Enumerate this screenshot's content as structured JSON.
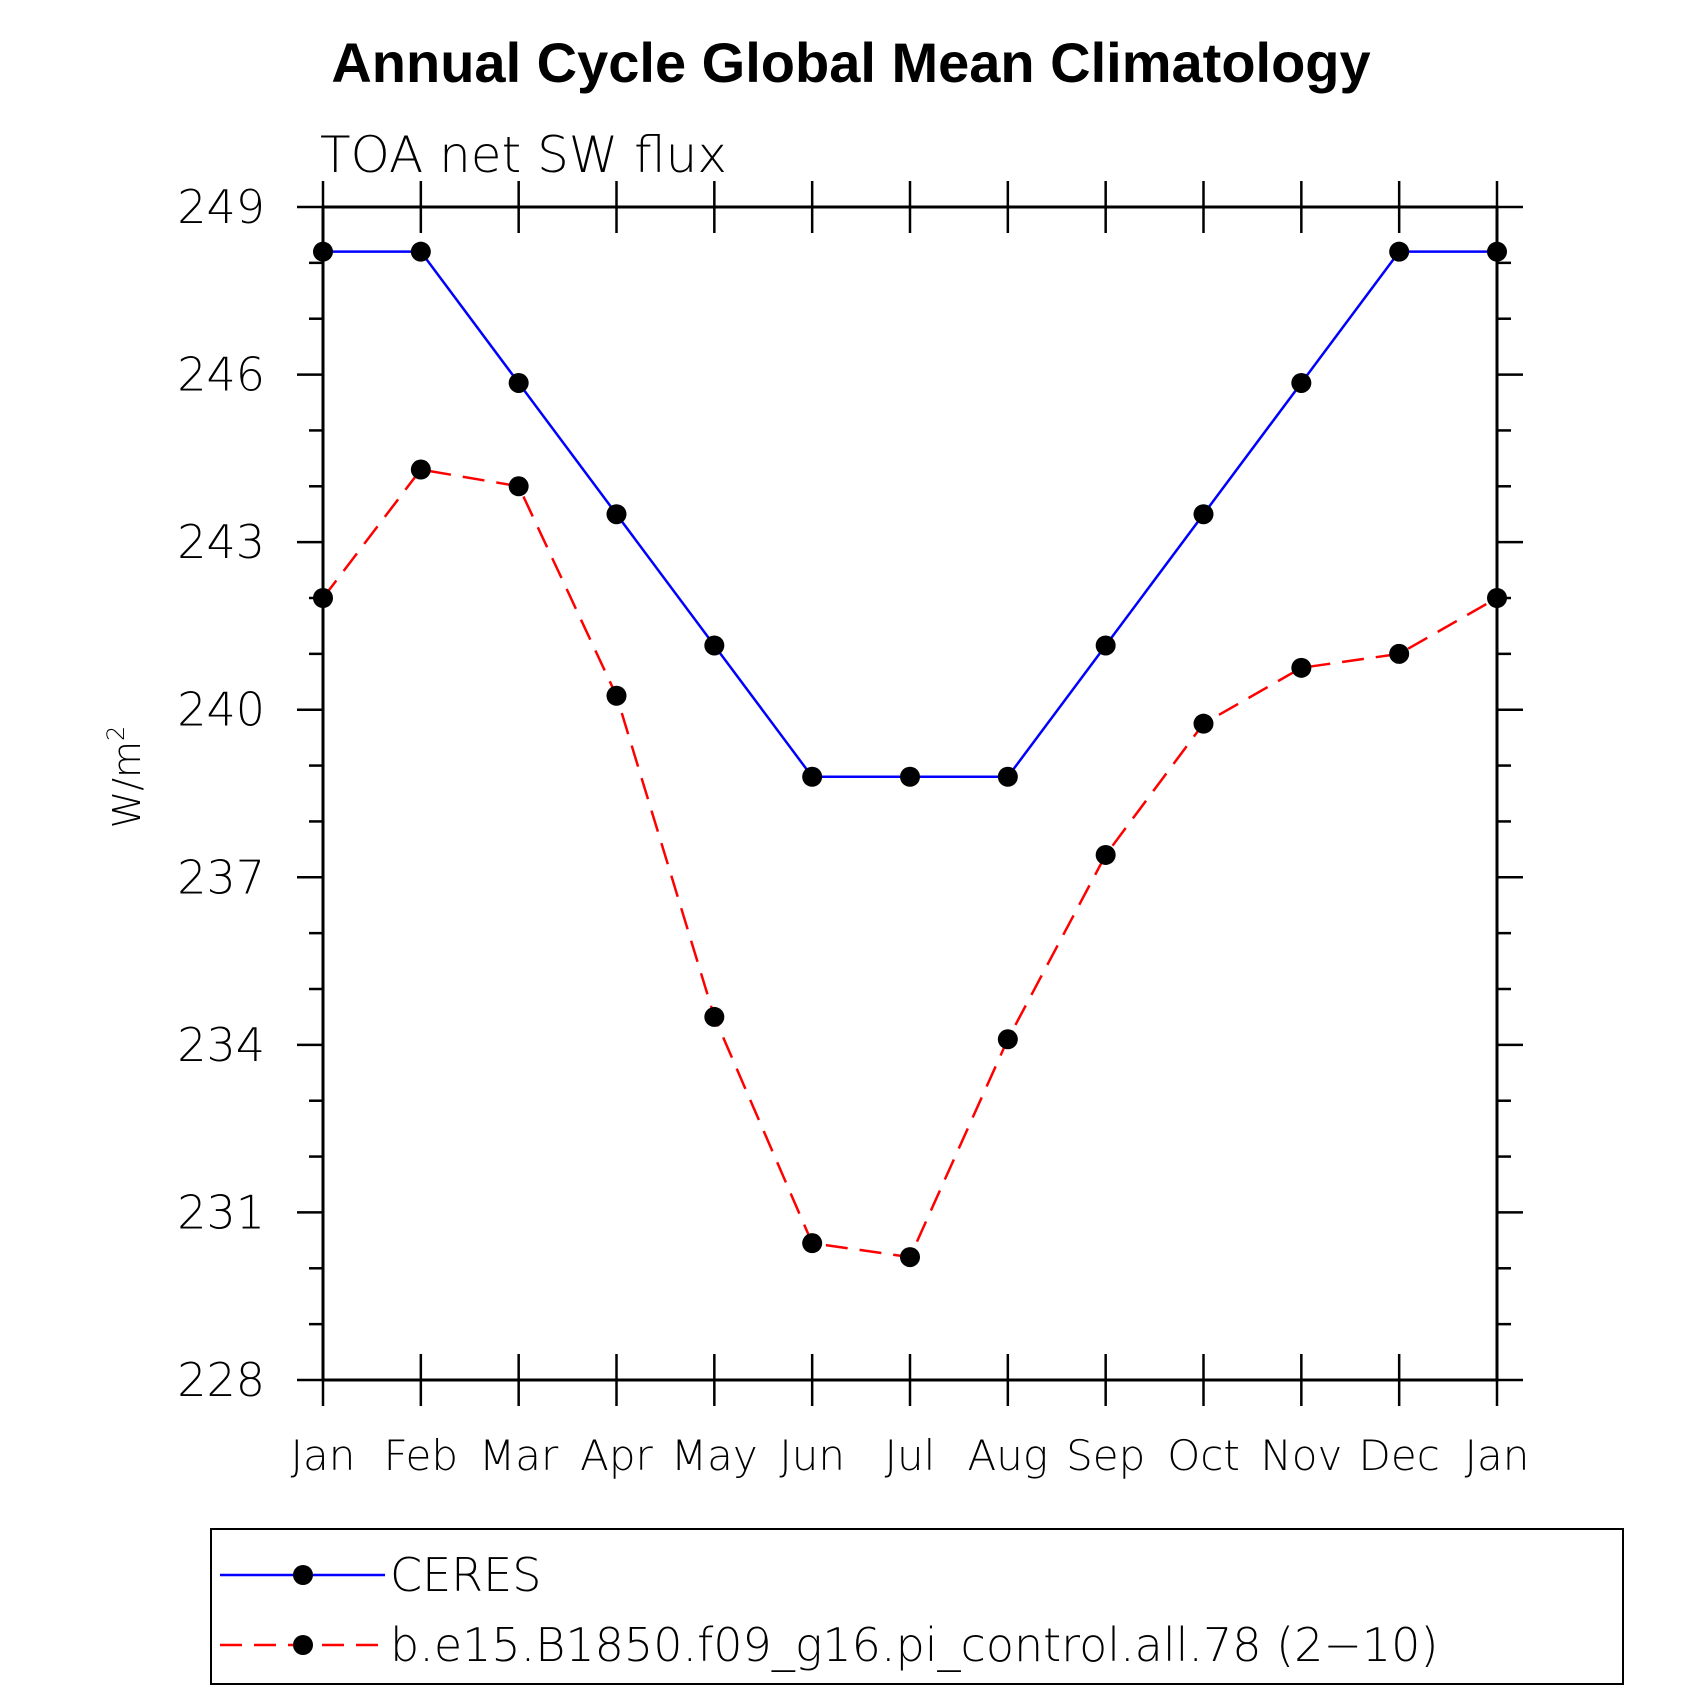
{
  "chart_data": {
    "type": "line",
    "title": "Annual Cycle Global Mean Climatology",
    "subtitle": "TOA net SW flux",
    "ylabel_base": "W/m",
    "ylabel_sup": "2",
    "categories": [
      "Jan",
      "Feb",
      "Mar",
      "Apr",
      "May",
      "Jun",
      "Jul",
      "Aug",
      "Sep",
      "Oct",
      "Nov",
      "Dec",
      "Jan"
    ],
    "ylim": [
      228,
      249
    ],
    "yticks": [
      228,
      231,
      234,
      237,
      240,
      243,
      246,
      249
    ],
    "grid": false,
    "legend_position": "bottom",
    "series": [
      {
        "name": "CERES",
        "color": "#0000ff",
        "dash": "solid",
        "values": [
          248.2,
          248.2,
          245.85,
          243.5,
          241.15,
          238.8,
          238.8,
          238.8,
          241.15,
          243.5,
          245.85,
          248.2,
          248.2
        ]
      },
      {
        "name": "b.e15.B1850.f09_g16.pi_control.all.78 (2−10)",
        "color": "#ff0000",
        "dash": "dashed",
        "values": [
          242.0,
          244.3,
          244.0,
          240.25,
          234.5,
          230.45,
          230.2,
          234.1,
          237.4,
          239.75,
          240.75,
          241.0,
          242.0
        ]
      }
    ]
  }
}
